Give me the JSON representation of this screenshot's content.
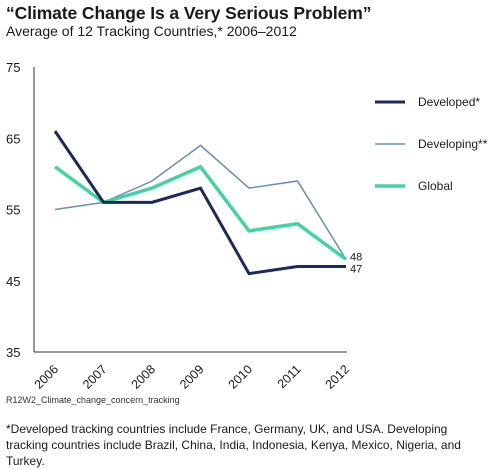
{
  "title": "“Climate Change Is a Very Serious Problem”",
  "subtitle": "Average of 12 Tracking Countries,* 2006–2012",
  "source_id": "R12W2_Climate_change_concern_tracking",
  "footnote": "*Developed tracking countries include France, Germany, UK, and USA. Developing tracking countries include Brazil, China, India, Indonesia, Kenya, Mexico, Nigeria, and Turkey.",
  "chart_data": {
    "type": "line",
    "x": [
      "2006",
      "2007",
      "2008",
      "2009",
      "2010",
      "2011",
      "2012"
    ],
    "ylim": [
      35,
      75
    ],
    "yticks": [
      35,
      45,
      55,
      65,
      75
    ],
    "grid": false,
    "legend_position": "right",
    "series": [
      {
        "name": "Developed*",
        "color": "#1b2a5e",
        "values": [
          66,
          56,
          56,
          58,
          46,
          47,
          47
        ]
      },
      {
        "name": "Developing**",
        "color": "#6a8fb5",
        "values": [
          55,
          56,
          59,
          64,
          58,
          59,
          48
        ]
      },
      {
        "name": "Global",
        "color": "#3fd4a0",
        "values": [
          61,
          56,
          58,
          61,
          52,
          53,
          48
        ]
      }
    ],
    "end_labels": [
      "48",
      "47"
    ]
  }
}
